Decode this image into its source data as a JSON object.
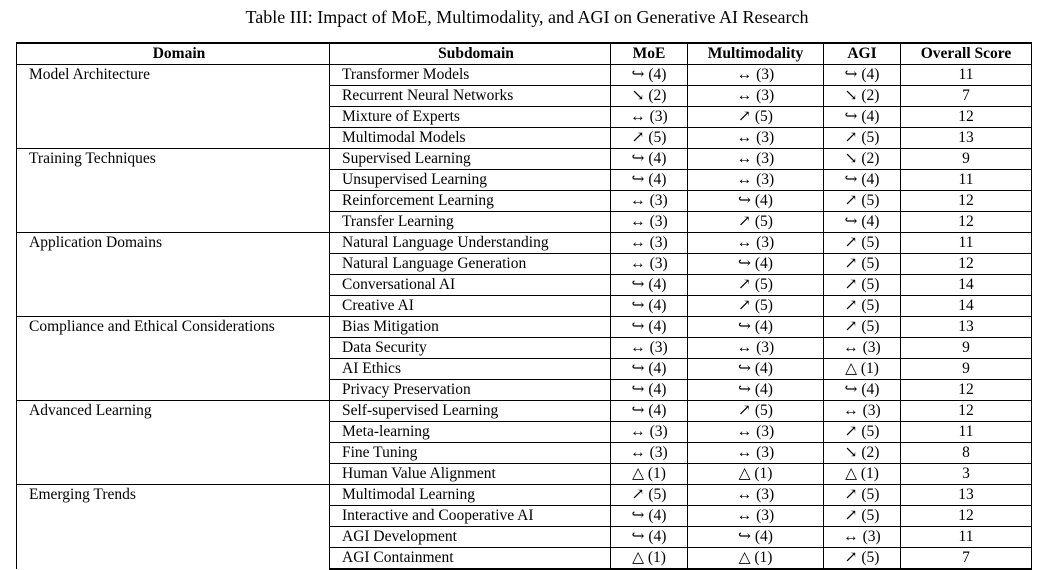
{
  "caption": "Table III: Impact of MoE, Multimodality, and AGI on Generative AI Research",
  "headers": [
    "Domain",
    "Subdomain",
    "MoE",
    "Multimodality",
    "AGI",
    "Overall Score"
  ],
  "groups": [
    {
      "domain": "Model Architecture",
      "rows": [
        {
          "sub": "Transformer Models",
          "moe": "↪ (4)",
          "mm": "↔ (3)",
          "agi": "↪ (4)",
          "score": "11"
        },
        {
          "sub": "Recurrent Neural Networks",
          "moe": "↘ (2)",
          "mm": "↔ (3)",
          "agi": "↘ (2)",
          "score": "7"
        },
        {
          "sub": "Mixture of Experts",
          "moe": "↔ (3)",
          "mm": "↗ (5)",
          "agi": "↪ (4)",
          "score": "12"
        },
        {
          "sub": "Multimodal Models",
          "moe": "↗ (5)",
          "mm": "↔ (3)",
          "agi": "↗ (5)",
          "score": "13"
        }
      ]
    },
    {
      "domain": "Training Techniques",
      "rows": [
        {
          "sub": "Supervised Learning",
          "moe": "↪ (4)",
          "mm": "↔ (3)",
          "agi": "↘ (2)",
          "score": "9"
        },
        {
          "sub": "Unsupervised Learning",
          "moe": "↪ (4)",
          "mm": "↔ (3)",
          "agi": "↪ (4)",
          "score": "11"
        },
        {
          "sub": "Reinforcement Learning",
          "moe": "↔ (3)",
          "mm": "↪ (4)",
          "agi": "↗ (5)",
          "score": "12"
        },
        {
          "sub": "Transfer Learning",
          "moe": "↔ (3)",
          "mm": "↗ (5)",
          "agi": "↪ (4)",
          "score": "12"
        }
      ]
    },
    {
      "domain": "Application Domains",
      "rows": [
        {
          "sub": "Natural Language Understanding",
          "moe": "↔ (3)",
          "mm": "↔ (3)",
          "agi": "↗ (5)",
          "score": "11"
        },
        {
          "sub": "Natural Language Generation",
          "moe": "↔ (3)",
          "mm": "↪ (4)",
          "agi": "↗ (5)",
          "score": "12"
        },
        {
          "sub": "Conversational AI",
          "moe": "↪ (4)",
          "mm": "↗ (5)",
          "agi": "↗ (5)",
          "score": "14"
        },
        {
          "sub": "Creative AI",
          "moe": "↪ (4)",
          "mm": "↗ (5)",
          "agi": "↗ (5)",
          "score": "14"
        }
      ]
    },
    {
      "domain": "Compliance and Ethical Considerations",
      "rows": [
        {
          "sub": "Bias Mitigation",
          "moe": "↪ (4)",
          "mm": "↪ (4)",
          "agi": "↗ (5)",
          "score": "13"
        },
        {
          "sub": "Data Security",
          "moe": "↔ (3)",
          "mm": "↔ (3)",
          "agi": "↔ (3)",
          "score": "9"
        },
        {
          "sub": "AI Ethics",
          "moe": "↪ (4)",
          "mm": "↪ (4)",
          "agi": "△ (1)",
          "score": "9"
        },
        {
          "sub": "Privacy Preservation",
          "moe": "↪ (4)",
          "mm": "↪ (4)",
          "agi": "↪ (4)",
          "score": "12"
        }
      ]
    },
    {
      "domain": "Advanced Learning",
      "rows": [
        {
          "sub": "Self-supervised Learning",
          "moe": "↪ (4)",
          "mm": "↗ (5)",
          "agi": "↔ (3)",
          "score": "12"
        },
        {
          "sub": "Meta-learning",
          "moe": "↔ (3)",
          "mm": "↔ (3)",
          "agi": "↗ (5)",
          "score": "11"
        },
        {
          "sub": "Fine Tuning",
          "moe": "↔ (3)",
          "mm": "↔ (3)",
          "agi": "↘ (2)",
          "score": "8"
        },
        {
          "sub": "Human Value Alignment",
          "moe": "△ (1)",
          "mm": "△ (1)",
          "agi": "△ (1)",
          "score": "3"
        }
      ]
    },
    {
      "domain": "Emerging Trends",
      "rows": [
        {
          "sub": "Multimodal Learning",
          "moe": "↗ (5)",
          "mm": "↔ (3)",
          "agi": "↗ (5)",
          "score": "13"
        },
        {
          "sub": "Interactive and Cooperative AI",
          "moe": "↪ (4)",
          "mm": "↔ (3)",
          "agi": "↗ (5)",
          "score": "12"
        },
        {
          "sub": "AGI Development",
          "moe": "↪ (4)",
          "mm": "↪ (4)",
          "agi": "↔ (3)",
          "score": "11"
        },
        {
          "sub": "AGI Containment",
          "moe": "△ (1)",
          "mm": "△ (1)",
          "agi": "↗ (5)",
          "score": "7"
        }
      ]
    }
  ]
}
